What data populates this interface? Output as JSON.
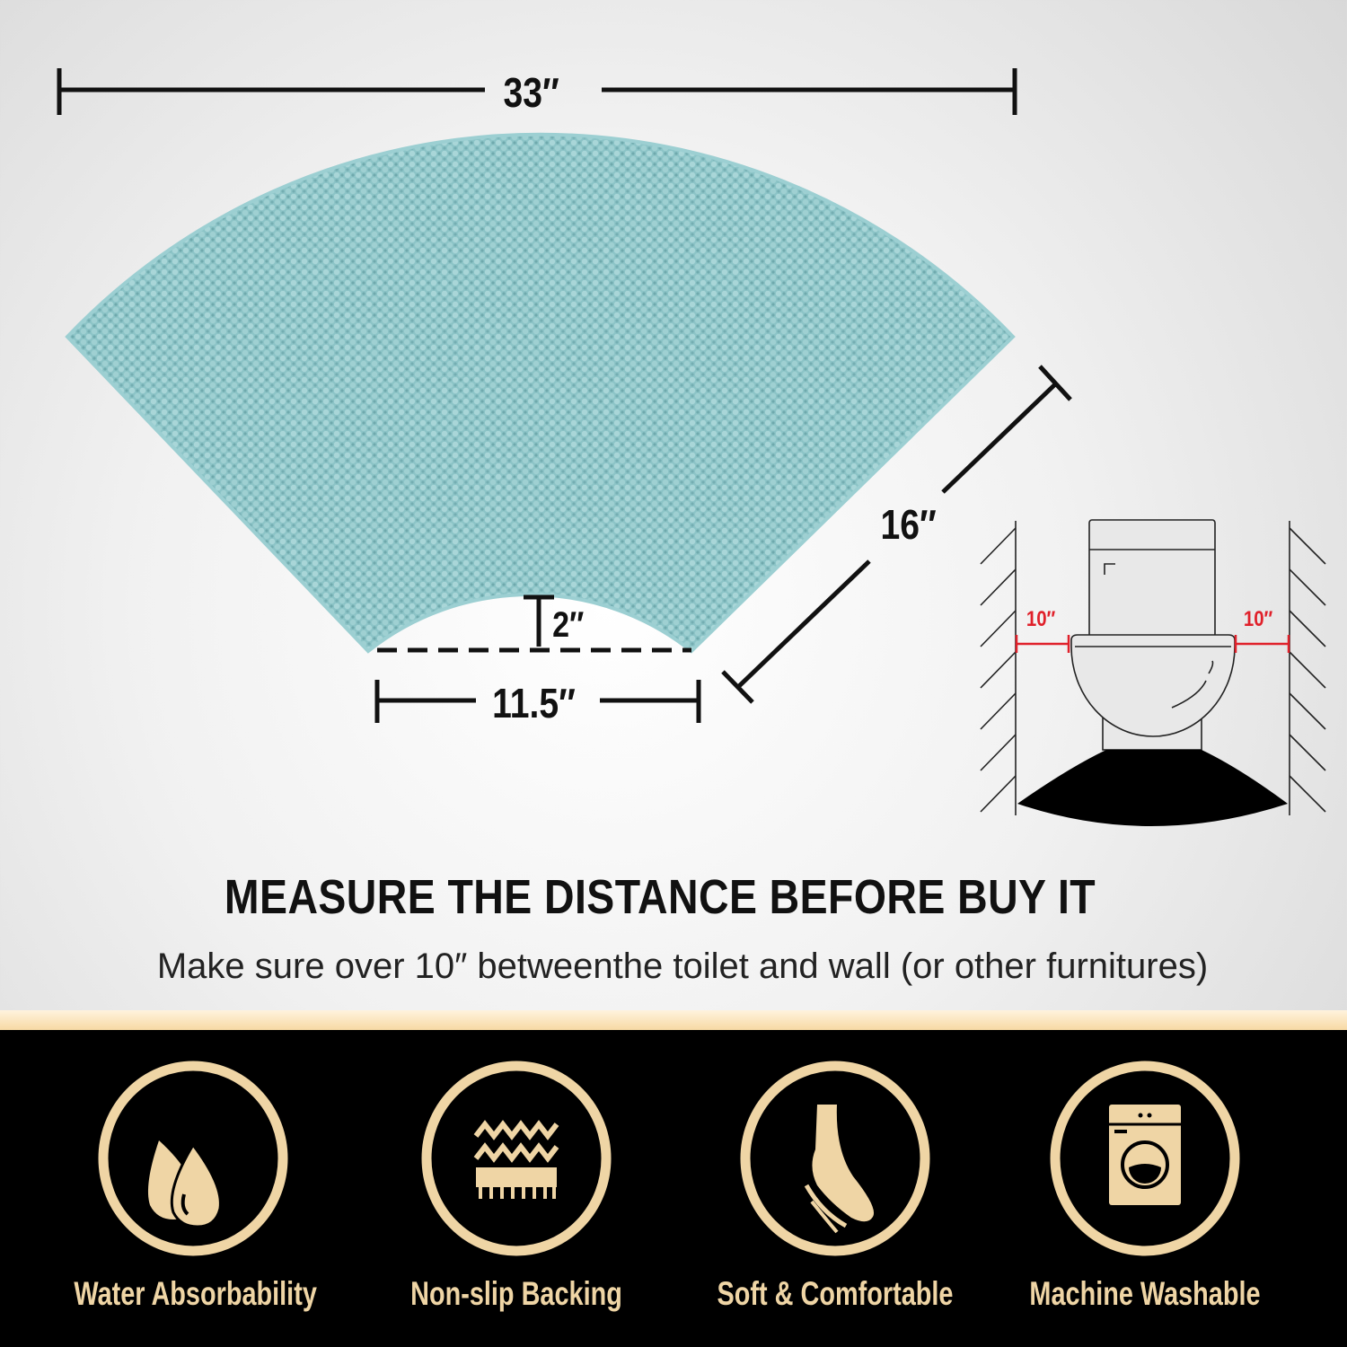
{
  "dimensions": {
    "width_label": "33″",
    "depth_label": "16″",
    "inner_width_label": "11.5″",
    "inner_depth_label": "2″"
  },
  "diagram": {
    "left_clearance": "10″",
    "right_clearance": "10″",
    "clearance_color": "#e0202a"
  },
  "headline": "MEASURE THE DISTANCE BEFORE BUY IT",
  "subline": "Make sure over 10″ betweenthe toilet and wall (or other furnitures)",
  "mat_color": "#8cc4c7",
  "accent_color": "#efd5a5",
  "features": [
    {
      "label": "Water Absorbability",
      "icon": "water-drops-icon"
    },
    {
      "label": "Non-slip Backing",
      "icon": "non-slip-backing-icon"
    },
    {
      "label": "Soft & Comfortable",
      "icon": "foot-icon"
    },
    {
      "label": "Machine Washable",
      "icon": "washing-machine-icon"
    }
  ]
}
